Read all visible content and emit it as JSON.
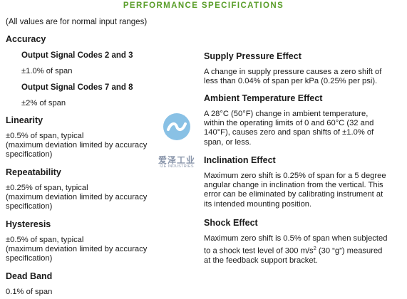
{
  "title": "PERFORMANCE SPECIFICATIONS",
  "note": "(All values are for normal input ranges)",
  "left": {
    "accuracy": {
      "heading": "Accuracy",
      "group1_heading": "Output Signal Codes 2 and 3",
      "group1_value": "±1.0% of span",
      "group2_heading": "Output Signal Codes 7 and 8",
      "group2_value": "±2% of span"
    },
    "linearity": {
      "heading": "Linearity",
      "line1": "±0.5% of span, typical",
      "line2": "(maximum deviation limited by accuracy",
      "line3": "specification)"
    },
    "repeatability": {
      "heading": "Repeatability",
      "line1": "±0.25% of span, typical",
      "line2": "(maximum deviation limited by accuracy",
      "line3": "specification)"
    },
    "hysteresis": {
      "heading": "Hysteresis",
      "line1": "±0.5% of span, typical",
      "line2": "(maximum deviation limited by accuracy",
      "line3": "specification)"
    },
    "dead_band": {
      "heading": "Dead Band",
      "line1": "0.1% of span"
    }
  },
  "right": {
    "supply_pressure": {
      "heading": "Supply Pressure Effect",
      "line1": "A change in supply pressure causes a zero shift of",
      "line2": "less than 0.04% of span per kPa (0.25% per psi)."
    },
    "ambient_temperature": {
      "heading": "Ambient Temperature Effect",
      "line1": "A 28°C (50°F) change in ambient temperature,",
      "line2": "within the operating limits of 0 and 60°C (32 and",
      "line3": "140°F), causes zero and span shifts of ±1.0% of",
      "line4": "span, or less."
    },
    "inclination": {
      "heading": "Inclination Effect",
      "line1": "Maximum zero shift is 0.25% of span for a 5 degree",
      "line2": "angular change in inclination from the vertical. This",
      "line3": "error can be eliminated by calibrating instrument at",
      "line4": "its intended mounting position."
    },
    "shock": {
      "heading": "Shock Effect",
      "line1": "Maximum zero shift is 0.5% of span when subjected",
      "line2_pre": "to a shock test level of 300 m/s",
      "line2_sup": "2",
      "line2_post": " (30 “g”) measured",
      "line3": "at the feedback support bracket."
    }
  },
  "watermark": {
    "cn": "爱泽工业",
    "en": "IZE INDUSTRIES",
    "color": "#2a8fd0"
  },
  "colors": {
    "title": "#5a9e2a",
    "text": "#1a1a1a"
  }
}
